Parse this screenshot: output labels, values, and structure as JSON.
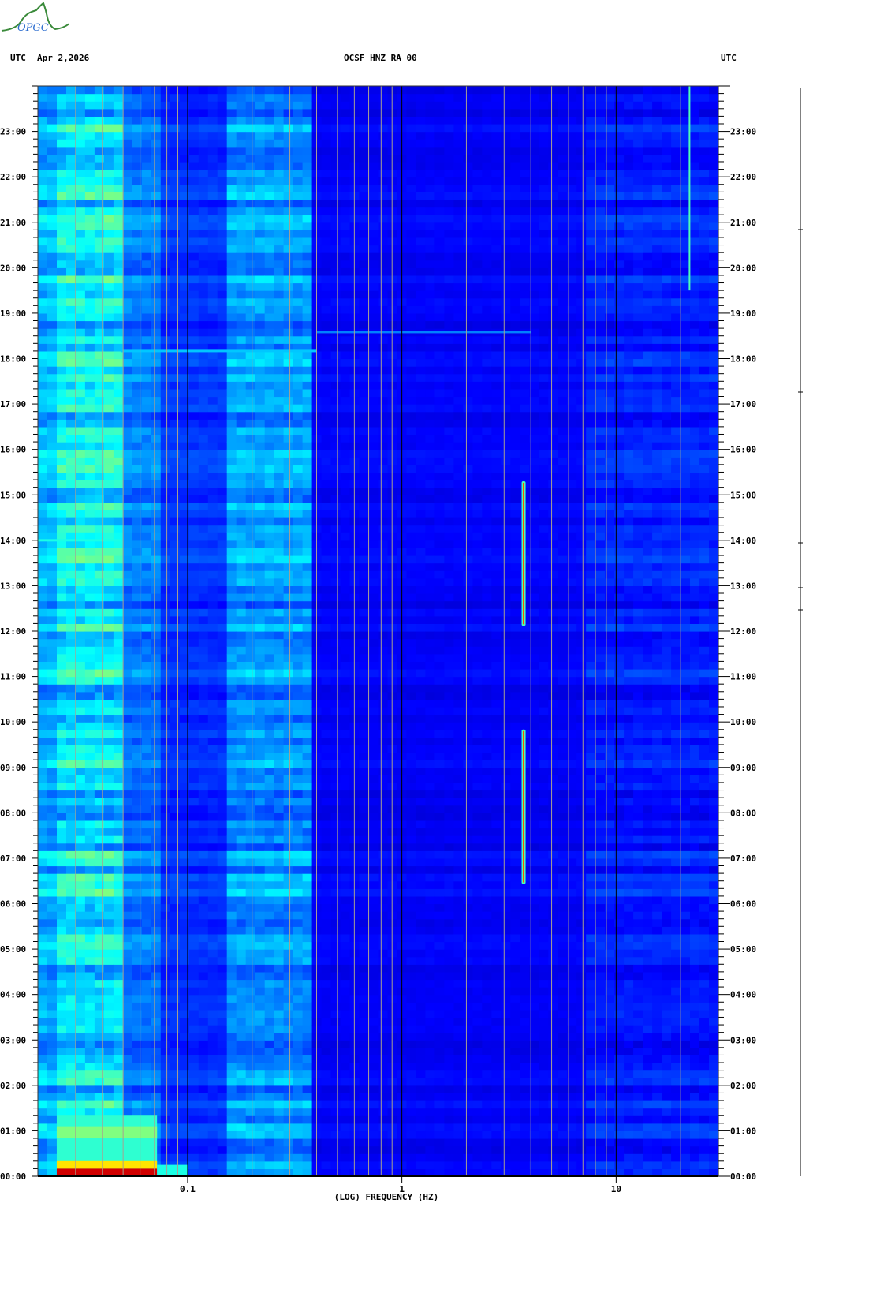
{
  "header": {
    "logo_text": "OPGC",
    "left_tz": "UTC",
    "date": "Apr 2,2026",
    "station": "OCSF HNZ RA 00",
    "right_tz": "UTC"
  },
  "chart_data": {
    "type": "heatmap",
    "title": "OCSF HNZ RA 00",
    "xlabel": "(LOG) FREQUENCY (HZ)",
    "ylabel": "UTC",
    "x_scale": "log",
    "xlim": [
      0.02,
      30
    ],
    "ylim": [
      "00:00",
      "24:00"
    ],
    "x_ticks": [
      {
        "value": 0.1,
        "label": "0.1"
      },
      {
        "value": 1,
        "label": "1"
      },
      {
        "value": 10,
        "label": "10"
      }
    ],
    "y_ticks": [
      "00:00",
      "01:00",
      "02:00",
      "03:00",
      "04:00",
      "05:00",
      "06:00",
      "07:00",
      "08:00",
      "09:00",
      "10:00",
      "11:00",
      "12:00",
      "13:00",
      "14:00",
      "15:00",
      "16:00",
      "17:00",
      "18:00",
      "19:00",
      "20:00",
      "21:00",
      "22:00",
      "23:00"
    ],
    "colormap": "jet",
    "colors": {
      "low": "#00008f",
      "high": "#800000",
      "grid_minor": "#a8a090",
      "grid_major": "#000000"
    },
    "background_profile": [
      {
        "f_min": 0.02,
        "f_max": 0.0245,
        "level": 0.3,
        "var": 0.1
      },
      {
        "f_min": 0.0245,
        "f_max": 0.049,
        "level": 0.36,
        "var": 0.14
      },
      {
        "f_min": 0.049,
        "f_max": 0.072,
        "level": 0.24,
        "var": 0.08
      },
      {
        "f_min": 0.072,
        "f_max": 0.145,
        "level": 0.17,
        "var": 0.05
      },
      {
        "f_min": 0.145,
        "f_max": 0.4,
        "level": 0.27,
        "var": 0.1
      },
      {
        "f_min": 0.4,
        "f_max": 7.5,
        "level": 0.12,
        "var": 0.03
      },
      {
        "f_min": 7.5,
        "f_max": 30,
        "level": 0.15,
        "var": 0.06
      }
    ],
    "events": [
      {
        "kind": "patch",
        "f_min": 0.0245,
        "f_max": 0.072,
        "t_start": "00:00",
        "t_end": "01:20",
        "level": 0.42
      },
      {
        "kind": "patch",
        "f_min": 0.0245,
        "f_max": 0.072,
        "t_start": "00:50",
        "t_end": "01:05",
        "level": 0.5
      },
      {
        "kind": "patch",
        "f_min": 0.0245,
        "f_max": 0.072,
        "t_start": "00:10",
        "t_end": "00:20",
        "level": 0.65
      },
      {
        "kind": "patch",
        "f_min": 0.0245,
        "f_max": 0.072,
        "t_start": "00:00",
        "t_end": "00:10",
        "level": 0.92
      },
      {
        "kind": "patch",
        "f_min": 0.072,
        "f_max": 0.1,
        "t_start": "00:00",
        "t_end": "00:15",
        "level": 0.4
      },
      {
        "kind": "hline",
        "time": "14:00",
        "f_min": 0.02,
        "f_max": 0.049,
        "level": 0.4
      },
      {
        "kind": "hline",
        "time": "18:10",
        "f_min": 0.049,
        "f_max": 0.4,
        "level": 0.32
      },
      {
        "kind": "hline",
        "time": "18:35",
        "f_min": 0.4,
        "f_max": 4.0,
        "level": 0.25
      },
      {
        "kind": "tremor",
        "f": 3.7,
        "t_start": "06:26",
        "t_end": "09:50",
        "level": 0.8
      },
      {
        "kind": "tremor",
        "f": 3.7,
        "t_start": "12:07",
        "t_end": "15:18",
        "level": 0.8
      },
      {
        "kind": "vline",
        "f": 22,
        "t_start": "19:30",
        "t_end": "24:00",
        "level": 0.45
      }
    ]
  }
}
